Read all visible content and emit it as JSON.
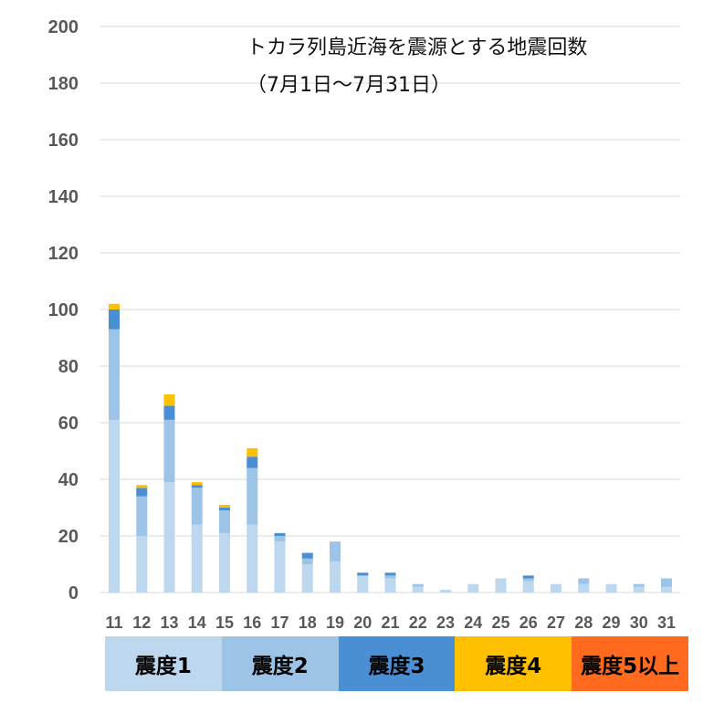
{
  "chart_data": {
    "type": "bar",
    "stacked": true,
    "title": "トカラ列島近海を震源とする地震回数",
    "subtitle": "（7月1日～7月31日）",
    "xlabel": "",
    "ylabel": "",
    "ylim": [
      0,
      200
    ],
    "yticks": [
      "200",
      "180",
      "160",
      "140",
      "120",
      "100",
      "80",
      "60",
      "40",
      "20",
      "0"
    ],
    "grid": true,
    "categories": [
      "11",
      "12",
      "13",
      "14",
      "15",
      "16",
      "17",
      "18",
      "19",
      "20",
      "21",
      "22",
      "23",
      "24",
      "25",
      "26",
      "27",
      "28",
      "29",
      "30",
      "31"
    ],
    "series": [
      {
        "name": "震度1",
        "color": "#bdd7ee",
        "values": [
          61,
          20,
          39,
          24,
          21,
          24,
          18,
          10,
          11,
          6,
          5,
          2,
          1,
          3,
          5,
          4,
          3,
          3,
          3,
          2,
          2
        ]
      },
      {
        "name": "震度2",
        "color": "#9dc3e6",
        "values": [
          32,
          14,
          22,
          13,
          8,
          20,
          2,
          2,
          7,
          0,
          1,
          1,
          0,
          0,
          0,
          1,
          0,
          2,
          0,
          1,
          3
        ]
      },
      {
        "name": "震度3",
        "color": "#4a8fd4",
        "values": [
          7,
          3,
          5,
          1,
          1,
          4,
          1,
          2,
          0,
          1,
          1,
          0,
          0,
          0,
          0,
          1,
          0,
          0,
          0,
          0,
          0
        ]
      },
      {
        "name": "震度4",
        "color": "#ffc000",
        "values": [
          2,
          1,
          4,
          1,
          1,
          3,
          0,
          0,
          0,
          0,
          0,
          0,
          0,
          0,
          0,
          0,
          0,
          0,
          0,
          0,
          0
        ]
      },
      {
        "name": "震度5以上",
        "color": "#ff6a1f",
        "values": [
          0,
          0,
          0,
          0,
          0,
          0,
          0,
          0,
          0,
          0,
          0,
          0,
          0,
          0,
          0,
          0,
          0,
          0,
          0,
          0,
          0
        ]
      }
    ],
    "legend": {
      "position": "bottom",
      "items": [
        {
          "label": "震度1",
          "color": "#bdd7ee"
        },
        {
          "label": "震度2",
          "color": "#9dc3e6"
        },
        {
          "label": "震度3",
          "color": "#4a8fd4"
        },
        {
          "label": "震度4",
          "color": "#ffc000"
        },
        {
          "label": "震度5以上",
          "color": "#ff6a1f"
        }
      ]
    }
  }
}
